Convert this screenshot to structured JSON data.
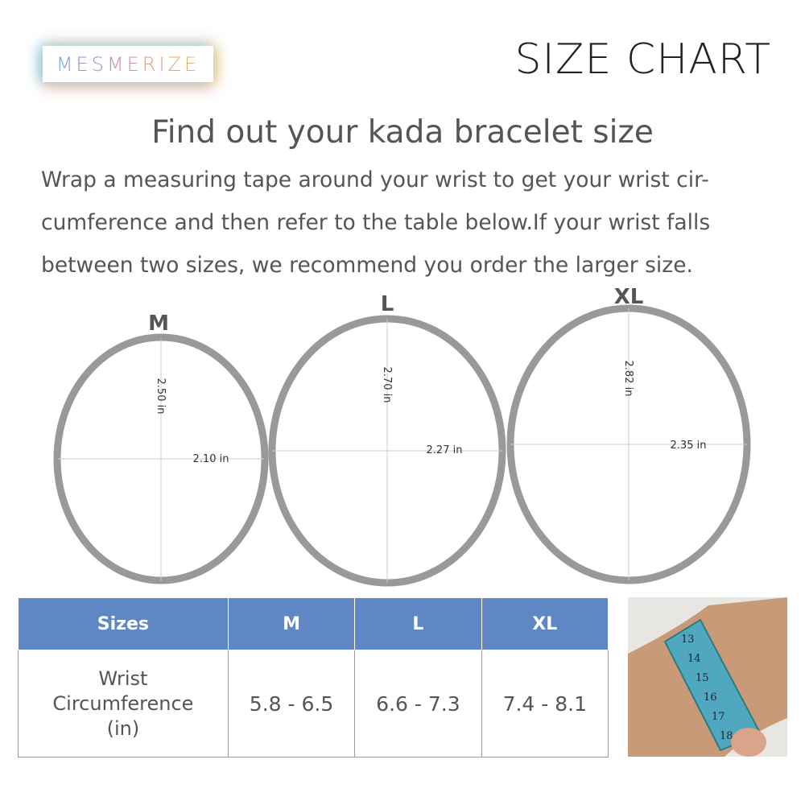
{
  "logo": "MESMERIZE",
  "title": "SIZE CHART",
  "heading": "Find out your kada bracelet size",
  "description": "Wrap a measuring tape around your wrist to get your wrist cir-cumference and then refer to the table below.If your wrist falls between two sizes, we recommend you order the larger size.",
  "rings": [
    {
      "size": "M",
      "height": "2.50 in",
      "width": "2.10 in"
    },
    {
      "size": "L",
      "height": "2.70 in",
      "width": "2.27 in"
    },
    {
      "size": "XL",
      "height": "2.82 in",
      "width": "2.35 in"
    }
  ],
  "table": {
    "headers": [
      "Sizes",
      "M",
      "L",
      "XL"
    ],
    "row_label": [
      "Wrist",
      "Circumference",
      "(in)"
    ],
    "values": [
      "5.8 - 6.5",
      "6.6 - 7.3",
      "7.4 - 8.1"
    ]
  },
  "photo": {
    "tape_numbers": [
      "13",
      "14",
      "15",
      "16",
      "17",
      "18"
    ]
  },
  "colors": {
    "header": "#5f87c5",
    "ring": "#999999"
  }
}
